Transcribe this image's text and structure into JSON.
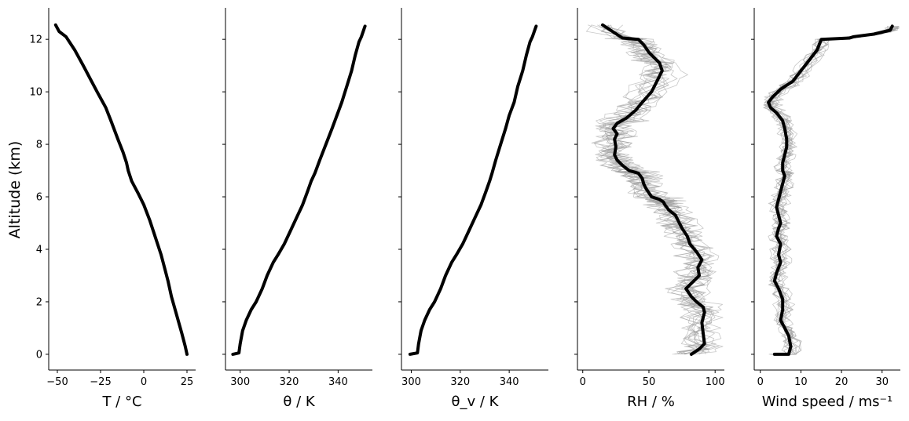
{
  "chart_data": [
    {
      "type": "line",
      "xlabel": "T / °C",
      "ylabel": "Altitude (km)",
      "xlim": [
        -55,
        30
      ],
      "ylim": [
        -0.6,
        13.2
      ],
      "xticks": [
        -50,
        -25,
        0,
        25
      ],
      "xtick_labels": [
        "−50",
        "−25",
        "0",
        "25"
      ],
      "yticks": [
        0,
        2,
        4,
        6,
        8,
        10,
        12
      ],
      "ytick_labels": [
        "0",
        "2",
        "4",
        "6",
        "8",
        "10",
        "12"
      ],
      "mean": {
        "x": [
          25,
          24,
          22,
          19,
          16,
          14,
          12,
          10,
          7.5,
          5.5,
          3.5,
          0,
          -3,
          -7,
          -9,
          -10,
          -12,
          -15,
          -19,
          -22,
          -27,
          -31,
          -35,
          -40,
          -45,
          -49,
          -51
        ],
        "y": [
          0,
          0.3,
          0.8,
          1.5,
          2.2,
          2.8,
          3.3,
          3.8,
          4.3,
          4.7,
          5.1,
          5.7,
          6.1,
          6.6,
          7.0,
          7.3,
          7.7,
          8.2,
          8.9,
          9.4,
          10.0,
          10.5,
          11.0,
          11.6,
          12.1,
          12.3,
          12.55
        ]
      },
      "members": 12
    },
    {
      "type": "line",
      "xlabel": "θ / K",
      "xlim": [
        294,
        354
      ],
      "ylim": [
        -0.6,
        13.2
      ],
      "xticks": [
        300,
        320,
        340
      ],
      "xtick_labels": [
        "300",
        "320",
        "340"
      ],
      "yticks": [
        0,
        2,
        4,
        6,
        8,
        10,
        12
      ],
      "mean": {
        "x": [
          297,
          299.5,
          300,
          301,
          302.5,
          304.5,
          306.5,
          309,
          311,
          313.5,
          315.5,
          318,
          320.5,
          323,
          325.5,
          327.5,
          329,
          330.5,
          332.5,
          335,
          337.5,
          339.5,
          341.5,
          343.5,
          345.5,
          347,
          348.5,
          349.5,
          351
        ],
        "y": [
          0,
          0.05,
          0.4,
          0.9,
          1.3,
          1.7,
          2.0,
          2.5,
          3.0,
          3.5,
          3.8,
          4.2,
          4.7,
          5.2,
          5.7,
          6.2,
          6.6,
          6.9,
          7.4,
          8.0,
          8.6,
          9.1,
          9.6,
          10.2,
          10.8,
          11.4,
          11.9,
          12.1,
          12.5
        ]
      },
      "members": 12
    },
    {
      "type": "line",
      "xlabel": "θ_v / K",
      "xlim": [
        296,
        356
      ],
      "ylim": [
        -0.6,
        13.2
      ],
      "xticks": [
        300,
        320,
        340
      ],
      "xtick_labels": [
        "300",
        "320",
        "340"
      ],
      "yticks": [
        0,
        2,
        4,
        6,
        8,
        10,
        12
      ],
      "mean": {
        "x": [
          299.5,
          302.5,
          303,
          304,
          305.5,
          307.5,
          309.5,
          312,
          314,
          316.5,
          318.5,
          321,
          323.5,
          326,
          328.5,
          330.5,
          332,
          333,
          334.5,
          336.5,
          338.5,
          340,
          342,
          343.5,
          345.5,
          347,
          348.5,
          349.5,
          351
        ],
        "y": [
          0,
          0.05,
          0.4,
          0.9,
          1.3,
          1.7,
          2.0,
          2.5,
          3.0,
          3.5,
          3.8,
          4.2,
          4.7,
          5.2,
          5.7,
          6.2,
          6.6,
          6.9,
          7.4,
          8.0,
          8.6,
          9.1,
          9.6,
          10.2,
          10.8,
          11.4,
          11.9,
          12.1,
          12.5
        ]
      },
      "members": 12
    },
    {
      "type": "line",
      "xlabel": "RH / %",
      "xlim": [
        -4,
        107
      ],
      "ylim": [
        -0.6,
        13.2
      ],
      "xticks": [
        0,
        50,
        100
      ],
      "xtick_labels": [
        "0",
        "50",
        "100"
      ],
      "yticks": [
        0,
        2,
        4,
        6,
        8,
        10,
        12
      ],
      "mean": {
        "x": [
          82,
          88,
          92,
          91,
          90,
          92,
          91,
          86,
          82,
          78,
          84,
          88,
          87,
          90,
          86,
          81,
          79,
          75,
          73,
          70,
          65,
          62,
          61,
          58,
          52,
          48,
          46,
          45,
          42,
          35,
          30,
          26,
          24,
          25,
          24,
          26,
          23,
          26,
          33,
          40,
          45,
          52,
          57,
          60,
          58,
          54,
          50,
          46,
          42,
          30,
          15
        ],
        "y": [
          0,
          0.2,
          0.4,
          0.8,
          1.2,
          1.6,
          1.8,
          2.0,
          2.2,
          2.5,
          2.8,
          3.0,
          3.3,
          3.6,
          3.9,
          4.2,
          4.5,
          4.8,
          5.0,
          5.3,
          5.5,
          5.7,
          5.8,
          5.9,
          6.0,
          6.3,
          6.5,
          6.7,
          6.9,
          7.0,
          7.2,
          7.4,
          7.6,
          7.9,
          8.2,
          8.4,
          8.6,
          8.8,
          9.0,
          9.3,
          9.6,
          10.0,
          10.5,
          10.8,
          11.1,
          11.3,
          11.5,
          11.8,
          12.0,
          12.05,
          12.55
        ]
      },
      "members": 14
    },
    {
      "type": "line",
      "xlabel": "Wind speed / ms⁻¹",
      "xlim": [
        -1.5,
        34.5
      ],
      "ylim": [
        -0.6,
        13.2
      ],
      "xticks": [
        0,
        10,
        20,
        30
      ],
      "xtick_labels": [
        "0",
        "10",
        "20",
        "30"
      ],
      "yticks": [
        0,
        2,
        4,
        6,
        8,
        10,
        12
      ],
      "mean": {
        "x": [
          3.5,
          7,
          7.5,
          7,
          6,
          5,
          5.5,
          5.5,
          4.5,
          3.5,
          4,
          5,
          4.5,
          5,
          4,
          4.5,
          5,
          4.5,
          4,
          4.5,
          5,
          5.5,
          6,
          5.5,
          5.5,
          6,
          6.5,
          6.5,
          6,
          5.5,
          4,
          2.5,
          2,
          3,
          5,
          8,
          10,
          12,
          14,
          15,
          22,
          23,
          28,
          32,
          32.5
        ],
        "y": [
          0,
          0,
          0.3,
          0.7,
          1.0,
          1.3,
          1.7,
          2.1,
          2.5,
          2.8,
          3.1,
          3.5,
          3.8,
          4.2,
          4.5,
          4.8,
          5.0,
          5.3,
          5.6,
          5.9,
          6.2,
          6.5,
          6.8,
          7.0,
          7.3,
          7.6,
          7.9,
          8.2,
          8.6,
          8.9,
          9.2,
          9.4,
          9.6,
          9.8,
          10.1,
          10.4,
          10.8,
          11.2,
          11.6,
          12.0,
          12.05,
          12.1,
          12.2,
          12.35,
          12.5
        ]
      },
      "members": 14
    }
  ]
}
